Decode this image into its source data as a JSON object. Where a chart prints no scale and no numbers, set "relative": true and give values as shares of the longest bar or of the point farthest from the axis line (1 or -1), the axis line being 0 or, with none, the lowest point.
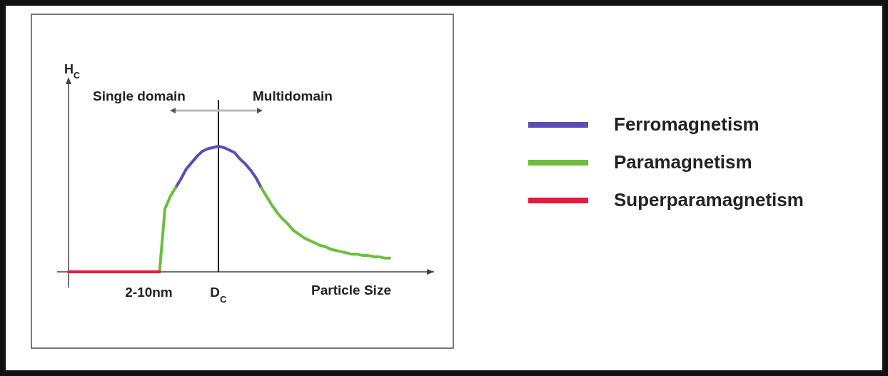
{
  "chart_data": {
    "type": "line",
    "relative": true,
    "xlabel": "Particle Size",
    "categories": [
      null,
      null,
      null,
      null,
      null,
      null,
      null,
      null,
      null,
      null,
      null,
      null,
      null,
      null,
      null,
      "2-10nm",
      null,
      null,
      null,
      null,
      null,
      null,
      null,
      null,
      null,
      null,
      null,
      null,
      "D$_{C}$",
      null,
      null,
      null,
      null,
      null,
      null,
      null,
      null,
      null,
      null,
      null,
      null,
      null,
      null,
      null,
      null,
      null,
      null,
      null,
      null,
      null,
      null,
      null,
      null,
      null,
      null,
      null,
      null,
      null,
      null,
      null,
      null
    ],
    "tick_labels": "x",
    "legend": "right",
    "annotations": [
      "Single domain",
      "Multidomain",
      "H$_{C}$"
    ],
    "ref_lines": [
      {
        "axis": "x",
        "value": "D$_{C}$",
        "color": "#000000"
      }
    ],
    "series": [
      {
        "name": "Ferromagnetism",
        "color": "#5b4db3",
        "values": [
          null,
          null,
          null,
          null,
          null,
          null,
          null,
          null,
          null,
          null,
          null,
          null,
          null,
          null,
          null,
          null,
          null,
          null,
          null,
          null,
          0.67,
          0.74,
          0.82,
          0.87,
          0.92,
          0.96,
          0.98,
          0.99,
          1,
          0.99,
          0.97,
          0.95,
          0.9,
          0.86,
          0.81,
          0.75,
          0.67,
          null,
          null,
          null,
          null,
          null,
          null,
          null,
          null,
          null,
          null,
          null,
          null,
          null,
          null,
          null,
          null,
          null,
          null,
          null,
          null,
          null,
          null,
          null,
          null
        ]
      },
      {
        "name": "Paramagnetism",
        "color": "#6cbf3c",
        "values": [
          null,
          null,
          null,
          null,
          null,
          null,
          null,
          null,
          null,
          null,
          null,
          null,
          null,
          null,
          null,
          null,
          null,
          0,
          0.5,
          0.6,
          0.67,
          null,
          null,
          null,
          null,
          null,
          null,
          null,
          null,
          null,
          null,
          null,
          null,
          null,
          null,
          null,
          0.67,
          0.6,
          0.53,
          0.47,
          0.42,
          0.38,
          0.33,
          0.3,
          0.27,
          0.25,
          0.23,
          0.21,
          0.2,
          0.18,
          0.17,
          0.16,
          0.15,
          0.14,
          0.14,
          0.13,
          0.13,
          0.12,
          0.12,
          0.11,
          0.11
        ]
      },
      {
        "name": "Superparamagnetism",
        "color": "#e8193c",
        "values": [
          0,
          0,
          0,
          0,
          0,
          0,
          0,
          0,
          0,
          0,
          0,
          0,
          0,
          0,
          0,
          0,
          0,
          0,
          null,
          null,
          null,
          null,
          null,
          null,
          null,
          null,
          null,
          null,
          null,
          null,
          null,
          null,
          null,
          null,
          null,
          null,
          null,
          null,
          null,
          null,
          null,
          null,
          null,
          null,
          null,
          null,
          null,
          null,
          null,
          null,
          null,
          null,
          null,
          null,
          null,
          null,
          null,
          null,
          null,
          null,
          null
        ]
      }
    ]
  }
}
